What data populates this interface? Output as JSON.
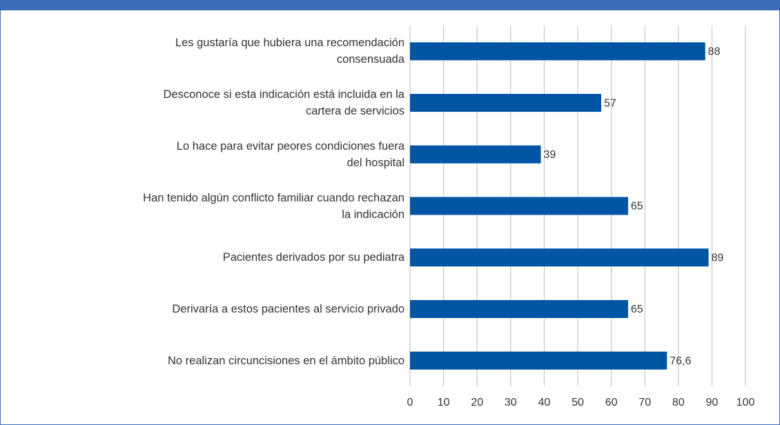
{
  "chart_data": {
    "type": "bar",
    "orientation": "horizontal",
    "categories": [
      "Les gustaría que hubiera una recomendación\nconsensuada",
      "Desconoce si esta indicación está incluida en la\ncartera de servicios",
      "Lo hace para evitar peores condiciones fuera\ndel hospital",
      "Han tenido algún conflicto familiar cuando rechazan\nla indicación",
      "Pacientes derivados por su pediatra",
      "Derivaría a estos pacientes al servicio privado",
      "No realizan circuncisiones en el ámbito público"
    ],
    "values": [
      88,
      57,
      39,
      65,
      89,
      65,
      76.6
    ],
    "value_labels": [
      "88",
      "57",
      "39",
      "65",
      "89",
      "65",
      "76,6"
    ],
    "color": "#0055a4",
    "xlim": [
      0,
      100
    ],
    "xticks": [
      0,
      10,
      20,
      30,
      40,
      50,
      60,
      70,
      80,
      90,
      100
    ],
    "grid": true
  }
}
